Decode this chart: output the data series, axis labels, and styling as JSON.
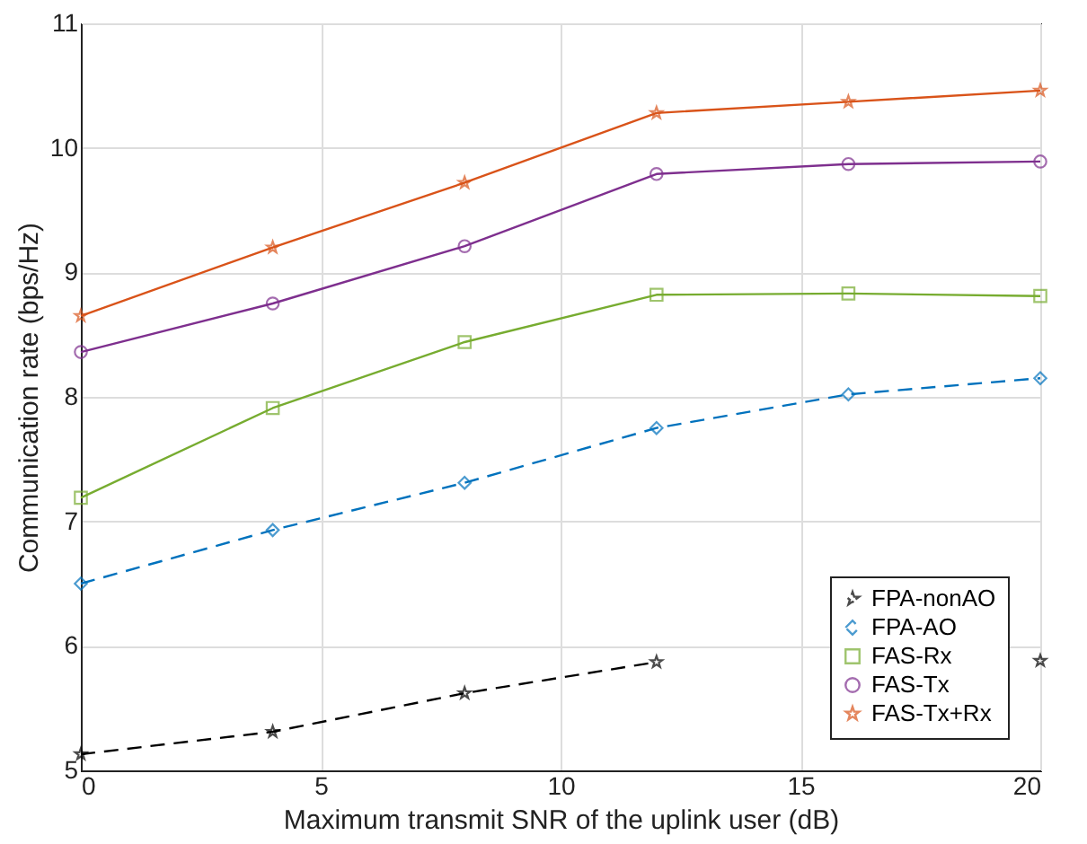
{
  "chart_data": {
    "type": "line",
    "xlabel": "Maximum transmit SNR of the uplink user (dB)",
    "ylabel": "Communication rate (bps/Hz)",
    "x": [
      0,
      4,
      8,
      12,
      16,
      20
    ],
    "series": [
      {
        "name": "FPA-nonAO",
        "color": "#000000",
        "marker": "star",
        "line_style": "dashed",
        "values": [
          5.13,
          5.31,
          5.62,
          5.87,
          null,
          5.88
        ]
      },
      {
        "name": "FPA-AO",
        "color": "#0072bd",
        "marker": "diamond",
        "line_style": "dashed",
        "values": [
          6.5,
          6.93,
          7.31,
          7.75,
          8.02,
          8.15
        ]
      },
      {
        "name": "FAS-Rx",
        "color": "#77ac30",
        "marker": "square",
        "line_style": "solid",
        "values": [
          7.19,
          7.91,
          8.44,
          8.82,
          8.83,
          8.81
        ]
      },
      {
        "name": "FAS-Tx",
        "color": "#7e2f8e",
        "marker": "circle",
        "line_style": "solid",
        "values": [
          8.36,
          8.75,
          9.21,
          9.79,
          9.87,
          9.89
        ]
      },
      {
        "name": "FAS-Tx+Rx",
        "color": "#d95319",
        "marker": "star",
        "line_style": "solid",
        "values": [
          8.65,
          9.2,
          9.72,
          10.28,
          10.37,
          10.46
        ]
      }
    ],
    "xlim": [
      0,
      20
    ],
    "xticks": [
      0,
      5,
      10,
      15,
      20
    ],
    "ylim": [
      5,
      11
    ],
    "yticks": [
      5,
      6,
      7,
      8,
      9,
      10,
      11
    ],
    "grid": true,
    "legend": "bottom right"
  }
}
